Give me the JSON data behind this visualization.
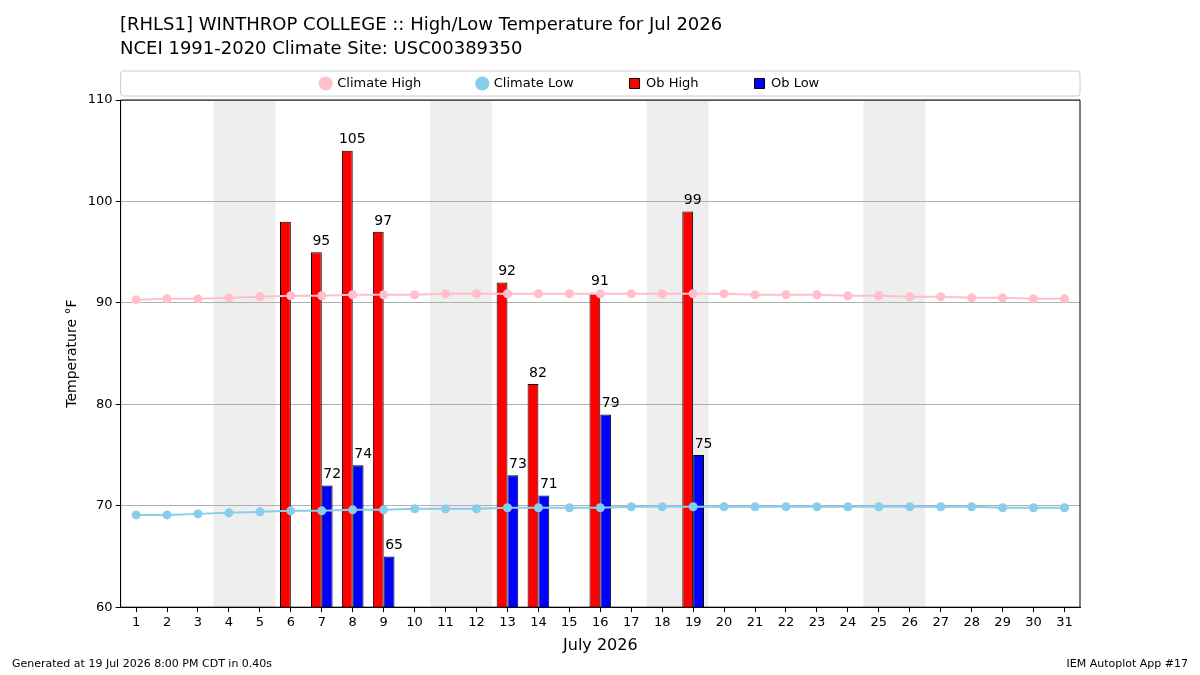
{
  "chart_data": {
    "type": "bar",
    "title": "[RHLS1] WINTHROP COLLEGE :: High/Low Temperature for Jul 2026",
    "subtitle": "NCEI 1991-2020 Climate Site: USC00389350",
    "xlabel": "July 2026",
    "ylabel": "Temperature °F",
    "annotations": [
      "Generated at 19 Jul 2026 8:00 PM CDT in 0.40s",
      "IEM Autoplot App #17"
    ],
    "x": [
      1,
      2,
      3,
      4,
      5,
      6,
      7,
      8,
      9,
      10,
      11,
      12,
      13,
      14,
      15,
      16,
      17,
      18,
      19,
      20,
      21,
      22,
      23,
      24,
      25,
      26,
      27,
      28,
      29,
      30,
      31
    ],
    "series": [
      {
        "name": "Climate High",
        "type": "line",
        "color": "#ffc0cb",
        "values": [
          90.3,
          90.4,
          90.4,
          90.5,
          90.6,
          90.7,
          90.7,
          90.8,
          90.8,
          90.8,
          90.9,
          90.9,
          90.9,
          90.9,
          90.9,
          90.9,
          90.9,
          90.9,
          90.9,
          90.9,
          90.8,
          90.8,
          90.8,
          90.7,
          90.7,
          90.6,
          90.6,
          90.5,
          90.5,
          90.4,
          90.4
        ]
      },
      {
        "name": "Climate Low",
        "type": "line",
        "color": "#87ceeb",
        "values": [
          69.1,
          69.1,
          69.2,
          69.3,
          69.4,
          69.5,
          69.5,
          69.6,
          69.6,
          69.7,
          69.7,
          69.7,
          69.8,
          69.8,
          69.8,
          69.8,
          69.9,
          69.9,
          69.9,
          69.9,
          69.9,
          69.9,
          69.9,
          69.9,
          69.9,
          69.9,
          69.9,
          69.9,
          69.8,
          69.8,
          69.8
        ]
      },
      {
        "name": "Ob High",
        "color": "#ff0000",
        "values": [
          null,
          null,
          null,
          null,
          null,
          98,
          95,
          105,
          97,
          null,
          null,
          null,
          92,
          82,
          null,
          91,
          null,
          null,
          99,
          null,
          null,
          null,
          null,
          null,
          null,
          null,
          null,
          null,
          null,
          null,
          null
        ],
        "value_labels": [
          null,
          null,
          null,
          null,
          null,
          null,
          "95",
          "105",
          "97",
          null,
          null,
          null,
          "92",
          "82",
          null,
          "91",
          null,
          null,
          "99",
          null,
          null,
          null,
          null,
          null,
          null,
          null,
          null,
          null,
          null,
          null,
          null
        ]
      },
      {
        "name": "Ob Low",
        "color": "#0000ff",
        "values": [
          null,
          null,
          null,
          null,
          null,
          null,
          72,
          74,
          65,
          null,
          null,
          null,
          73,
          71,
          null,
          79,
          null,
          null,
          75,
          null,
          null,
          null,
          null,
          null,
          null,
          null,
          null,
          null,
          null,
          null,
          null
        ],
        "value_labels": [
          null,
          null,
          null,
          null,
          null,
          null,
          "72",
          "74",
          "65",
          null,
          null,
          null,
          "73",
          "71",
          null,
          "79",
          null,
          null,
          "75",
          null,
          null,
          null,
          null,
          null,
          null,
          null,
          null,
          null,
          null,
          null,
          null
        ]
      }
    ],
    "xlim": [
      0.5,
      31.5
    ],
    "xticks": [
      1,
      2,
      3,
      4,
      5,
      6,
      7,
      8,
      9,
      10,
      11,
      12,
      13,
      14,
      15,
      16,
      17,
      18,
      19,
      20,
      21,
      22,
      23,
      24,
      25,
      26,
      27,
      28,
      29,
      30,
      31
    ],
    "ylim": [
      60,
      110
    ],
    "yticks": [
      60,
      70,
      80,
      90,
      100,
      110
    ],
    "bands": [
      {
        "axis": "x",
        "from": 3.5,
        "to": 5.5,
        "color": "#eeeeee"
      },
      {
        "axis": "x",
        "from": 10.5,
        "to": 12.5,
        "color": "#eeeeee"
      },
      {
        "axis": "x",
        "from": 17.5,
        "to": 19.5,
        "color": "#eeeeee"
      },
      {
        "axis": "x",
        "from": 24.5,
        "to": 26.5,
        "color": "#eeeeee"
      }
    ],
    "grid": "y",
    "legend": "top",
    "marker": "circle"
  }
}
